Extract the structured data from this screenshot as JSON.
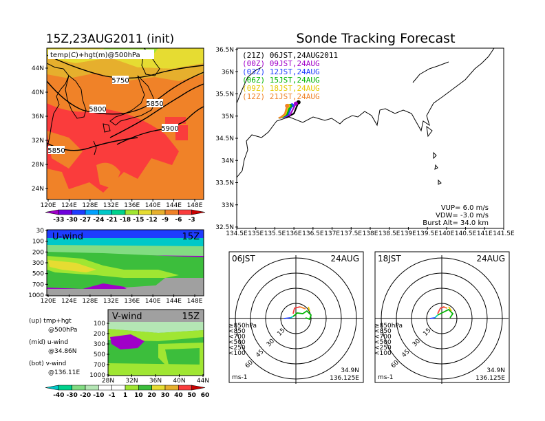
{
  "left_title": "15Z,23AUG2011 (init)",
  "right_title": "Sonde Tracking Forecast",
  "upper_panel": {
    "label": "temp(C)+hgt(m)@500hPa",
    "lat_ticks": [
      "44N",
      "40N",
      "36N",
      "32N",
      "28N",
      "24N"
    ],
    "lon_ticks": [
      "120E",
      "124E",
      "128E",
      "132E",
      "136E",
      "140E",
      "144E",
      "148E"
    ],
    "contour_labels": [
      "5750",
      "5800",
      "5850",
      "5900",
      "5850"
    ],
    "colorbar": {
      "labels": [
        "-33",
        "-30",
        "-27",
        "-24",
        "-21",
        "-18",
        "-15",
        "-12",
        "-9",
        "-6",
        "-3"
      ],
      "colors": [
        "#a000c8",
        "#6e00dc",
        "#1e3cff",
        "#00a0ff",
        "#00c8c8",
        "#00d28c",
        "#a0e632",
        "#e6dc32",
        "#e6af2d",
        "#f08228",
        "#fa3c3c",
        "#c80000"
      ]
    }
  },
  "mid_panel": {
    "label": "U-wind",
    "time": "15Z",
    "p_ticks": [
      "30",
      "100",
      "200",
      "300",
      "500",
      "700",
      "1000"
    ],
    "lon_ticks": [
      "120E",
      "124E",
      "128E",
      "132E",
      "136E",
      "140E",
      "144E",
      "148E"
    ]
  },
  "bottom_panel": {
    "label": "V-wind",
    "time": "15Z",
    "p_ticks": [
      "100",
      "200",
      "300",
      "500",
      "700",
      "1000"
    ],
    "lat_ticks": [
      "28N",
      "32N",
      "36N",
      "40N",
      "44N"
    ]
  },
  "wind_colorbar": {
    "labels": [
      "-40",
      "-30",
      "-20",
      "-10",
      "-1",
      "1",
      "10",
      "20",
      "30",
      "40",
      "50",
      "60"
    ],
    "colors": [
      "#00c8c8",
      "#00d28c",
      "#82dc82",
      "#b4e6b4",
      "#ffffff",
      "#ffffff",
      "#a0e632",
      "#3cbe3c",
      "#e6dc32",
      "#e6af2d",
      "#fa3c3c",
      "#c80000"
    ]
  },
  "notes": [
    {
      "l1": "(up)  tmp+hgt",
      "l2": "@500hPa"
    },
    {
      "l1": "(mid)  u-wind",
      "l2": "@34.86N"
    },
    {
      "l1": "(bot)  v-wind",
      "l2": "@136.11E"
    }
  ],
  "map": {
    "lat_ticks": [
      "36.5N",
      "36N",
      "35.5N",
      "35N",
      "34.5N",
      "34N",
      "33.5N",
      "33N",
      "32.5N"
    ],
    "lon_ticks": [
      "134.5E",
      "135E",
      "135.5E",
      "136E",
      "136.5E",
      "137E",
      "137.5E",
      "138E",
      "138.5E",
      "139E",
      "139.5E",
      "140E",
      "140.5E",
      "141E",
      "141.5E"
    ],
    "legend": [
      {
        "text": "(21Z)  06JST,24AUG2011",
        "color": "#000000"
      },
      {
        "text": "(00Z)  09JST,24AUG",
        "color": "#a000c8"
      },
      {
        "text": "(03Z)  12JST,24AUG",
        "color": "#1e3cff"
      },
      {
        "text": "(06Z)  15JST,24AUG",
        "color": "#00b400"
      },
      {
        "text": "(09Z)  18JST,24AUG",
        "color": "#e6c800"
      },
      {
        "text": "(12Z)  21JST,24AUG",
        "color": "#f08228"
      }
    ],
    "params": [
      "VUP=  6.0  m/s",
      "VDW= -3.0  m/s",
      "Burst Alt= 34.0  km"
    ]
  },
  "hodo_left": {
    "time": "06JST",
    "date": "24AUG",
    "units": "ms-1",
    "lat": "34.9N",
    "lon": "136.125E",
    "rings": [
      "15",
      "30",
      "45",
      "60"
    ]
  },
  "hodo_right": {
    "time": "18JST",
    "date": "24AUG",
    "units": "ms-1",
    "lat": "34.9N",
    "lon": "136.125E",
    "rings": [
      "15",
      "30",
      "45",
      "60"
    ]
  },
  "hodo_levels": [
    {
      "text": "≥850hPa",
      "color": "#fa3c3c"
    },
    {
      "text": "<850",
      "color": "#f08228"
    },
    {
      "text": "<700",
      "color": "#e6c800"
    },
    {
      "text": "<500",
      "color": "#00b400"
    },
    {
      "text": "<250",
      "color": "#00c8c8"
    },
    {
      "text": "<100",
      "color": "#1e3cff"
    }
  ],
  "chart_data": [
    {
      "type": "heatmap",
      "title": "15Z,23AUG2011 (init)",
      "label": "temp(C)+hgt(m)@500hPa",
      "xlabel": "",
      "ylabel": "",
      "xlim": [
        120,
        150
      ],
      "ylim": [
        22,
        48
      ],
      "contours": [
        5750,
        5800,
        5850,
        5900
      ]
    },
    {
      "type": "heatmap",
      "label": "U-wind",
      "xlim": [
        120,
        150
      ],
      "ylim": [
        1000,
        30
      ]
    },
    {
      "type": "heatmap",
      "label": "V-wind",
      "xlim": [
        28,
        44
      ],
      "ylim": [
        1000,
        30
      ]
    },
    {
      "type": "line",
      "title": "Sonde Tracking Forecast",
      "xlim": [
        134.5,
        141.5
      ],
      "ylim": [
        32.5,
        36.5
      ],
      "series": [
        {
          "name": "(21Z) 06JST,24AUG2011",
          "x": [
            136.12,
            136.0,
            135.85,
            135.7,
            135.6
          ],
          "y": [
            35.3,
            35.05,
            34.98,
            34.97,
            34.95
          ]
        },
        {
          "name": "(00Z) 09JST,24AUG",
          "x": [
            136.05,
            135.9,
            135.75,
            135.6
          ],
          "y": [
            35.27,
            35.02,
            34.97,
            34.95
          ]
        },
        {
          "name": "(03Z) 12JST,24AUG",
          "x": [
            135.95,
            135.85,
            135.72,
            135.6
          ],
          "y": [
            35.23,
            35.02,
            34.97,
            34.95
          ]
        },
        {
          "name": "(06Z) 15JST,24AUG",
          "x": [
            135.9,
            135.82,
            135.7,
            135.6
          ],
          "y": [
            35.22,
            35.03,
            34.97,
            34.95
          ]
        },
        {
          "name": "(09Z) 18JST,24AUG",
          "x": [
            135.85,
            135.78,
            135.68,
            135.6
          ],
          "y": [
            35.22,
            35.03,
            34.97,
            34.95
          ]
        },
        {
          "name": "(12Z) 21JST,24AUG",
          "x": [
            135.82,
            135.76,
            135.66,
            135.6
          ],
          "y": [
            35.22,
            35.04,
            34.97,
            34.95
          ]
        }
      ]
    }
  ]
}
